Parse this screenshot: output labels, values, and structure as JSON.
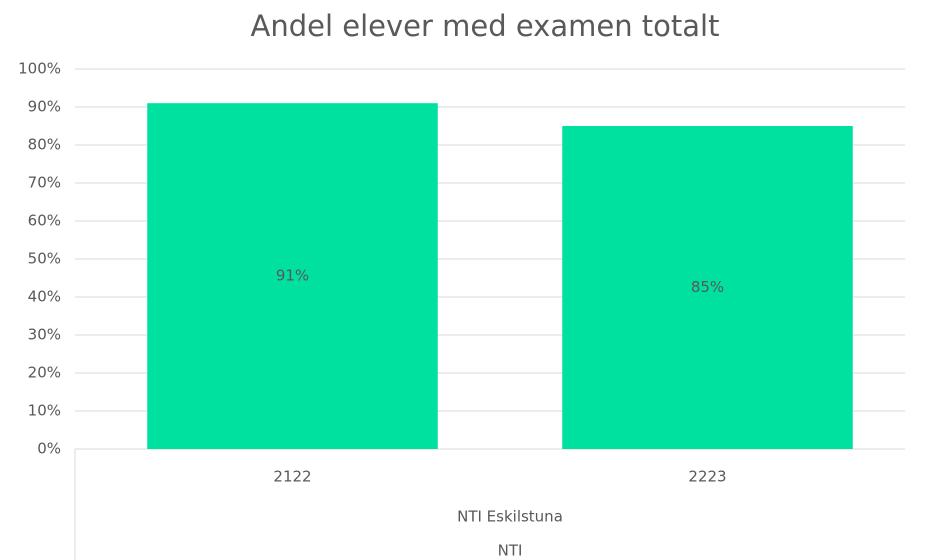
{
  "chart_data": {
    "type": "bar",
    "title": "Andel elever med examen totalt",
    "categories": [
      "2122",
      "2223"
    ],
    "category_groups": [
      "NTI Eskilstuna",
      "NTI"
    ],
    "values": [
      91,
      85
    ],
    "value_labels": [
      "91%",
      "85%"
    ],
    "color": "#00e09f",
    "ylim": [
      0,
      100
    ],
    "yticks": [
      {
        "value": 0,
        "label": "0%"
      },
      {
        "value": 10,
        "label": "10%"
      },
      {
        "value": 20,
        "label": "20%"
      },
      {
        "value": 30,
        "label": "30%"
      },
      {
        "value": 40,
        "label": "40%"
      },
      {
        "value": 50,
        "label": "50%"
      },
      {
        "value": 60,
        "label": "60%"
      },
      {
        "value": 70,
        "label": "70%"
      },
      {
        "value": 80,
        "label": "80%"
      },
      {
        "value": 90,
        "label": "90%"
      },
      {
        "value": 100,
        "label": "100%"
      }
    ],
    "grid": true
  }
}
